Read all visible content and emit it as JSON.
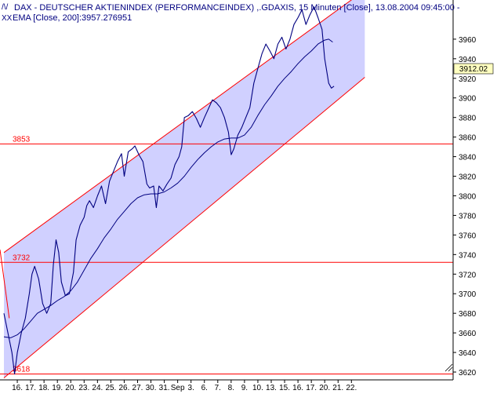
{
  "header": {
    "title_line": "DAX  - DEUTSCHER AKTIENINDEX (PERFORMANCEINDEX) ,.GDAXIS, 15 Minuten [Close], 13.08.2004 09:45:00 -",
    "indicator_line": "EMA [Close, 200]:3957.276951"
  },
  "last_price_label": "3912.02",
  "colors": {
    "price": "#000080",
    "ema": "#000080",
    "channel_fill": "#c8c8ff",
    "channel_line": "#ff0000",
    "level_line": "#ff0000",
    "level_text": "#ff0000",
    "last_label_bg": "#ffffc0"
  },
  "chart_data": {
    "type": "line",
    "title": "DAX  - DEUTSCHER AKTIENINDEX (PERFORMANCEINDEX) ,.GDAXIS, 15 Minuten [Close], 13.08.2004 09:45:00 -",
    "ylim": [
      3612,
      4000
    ],
    "y_ticks": [
      3620,
      3640,
      3660,
      3680,
      3700,
      3720,
      3740,
      3760,
      3780,
      3800,
      3820,
      3840,
      3860,
      3880,
      3900,
      3920,
      3940,
      3960
    ],
    "x_tick_labels": [
      "16.",
      "17.",
      "18.",
      "19.",
      "20.",
      "23.",
      "24.",
      "25.",
      "26.",
      "27.",
      "30.",
      "31.",
      "Sep",
      "3.",
      "6.",
      "7.",
      "8.",
      "9.",
      "10.",
      "13.",
      "15.",
      "16.",
      "17.",
      "20.",
      "21.",
      "22."
    ],
    "x_tick_index": [
      1,
      2,
      3,
      4,
      5,
      6,
      7,
      8,
      9,
      10,
      11,
      12,
      13,
      14,
      15,
      16,
      17,
      18,
      19,
      20,
      21,
      22,
      23,
      24,
      25,
      26
    ],
    "grid": false,
    "horizontal_levels": [
      {
        "label": "3853",
        "value": 3853
      },
      {
        "label": "3732",
        "value": 3732
      },
      {
        "label": "3618",
        "value": 3618
      }
    ],
    "channel": {
      "upper": [
        [
          0,
          3742
        ],
        [
          27,
          4010
        ]
      ],
      "lower": [
        [
          0,
          3614
        ],
        [
          27,
          3921
        ]
      ]
    },
    "series": [
      {
        "name": "DAX",
        "points": [
          [
            0,
            3680
          ],
          [
            0.3,
            3660
          ],
          [
            0.6,
            3640
          ],
          [
            0.8,
            3618
          ],
          [
            1.0,
            3640
          ],
          [
            1.3,
            3660
          ],
          [
            1.6,
            3675
          ],
          [
            1.9,
            3700
          ],
          [
            2.1,
            3720
          ],
          [
            2.3,
            3728
          ],
          [
            2.6,
            3715
          ],
          [
            2.9,
            3690
          ],
          [
            3.2,
            3680
          ],
          [
            3.5,
            3690
          ],
          [
            3.7,
            3730
          ],
          [
            3.9,
            3755
          ],
          [
            4.1,
            3742
          ],
          [
            4.3,
            3712
          ],
          [
            4.6,
            3698
          ],
          [
            4.9,
            3700
          ],
          [
            5.2,
            3722
          ],
          [
            5.4,
            3755
          ],
          [
            5.7,
            3770
          ],
          [
            6.0,
            3778
          ],
          [
            6.2,
            3790
          ],
          [
            6.4,
            3795
          ],
          [
            6.7,
            3788
          ],
          [
            7.0,
            3800
          ],
          [
            7.3,
            3810
          ],
          [
            7.6,
            3792
          ],
          [
            7.9,
            3815
          ],
          [
            8.2,
            3825
          ],
          [
            8.5,
            3835
          ],
          [
            8.8,
            3843
          ],
          [
            9.0,
            3820
          ],
          [
            9.3,
            3845
          ],
          [
            9.6,
            3848
          ],
          [
            9.8,
            3851
          ],
          [
            10.1,
            3842
          ],
          [
            10.4,
            3835
          ],
          [
            10.7,
            3812
          ],
          [
            10.9,
            3808
          ],
          [
            11.2,
            3810
          ],
          [
            11.4,
            3788
          ],
          [
            11.6,
            3810
          ],
          [
            11.9,
            3805
          ],
          [
            12.2,
            3812
          ],
          [
            12.5,
            3818
          ],
          [
            12.8,
            3832
          ],
          [
            13.1,
            3840
          ],
          [
            13.3,
            3850
          ],
          [
            13.5,
            3880
          ],
          [
            13.8,
            3882
          ],
          [
            14.1,
            3886
          ],
          [
            14.4,
            3879
          ],
          [
            14.7,
            3870
          ],
          [
            15.0,
            3880
          ],
          [
            15.3,
            3889
          ],
          [
            15.6,
            3898
          ],
          [
            15.9,
            3895
          ],
          [
            16.2,
            3890
          ],
          [
            16.5,
            3880
          ],
          [
            16.8,
            3865
          ],
          [
            17.0,
            3842
          ],
          [
            17.2,
            3848
          ],
          [
            17.5,
            3862
          ],
          [
            17.8,
            3870
          ],
          [
            18.1,
            3880
          ],
          [
            18.4,
            3890
          ],
          [
            18.7,
            3915
          ],
          [
            19.0,
            3930
          ],
          [
            19.3,
            3945
          ],
          [
            19.6,
            3955
          ],
          [
            19.9,
            3948
          ],
          [
            20.2,
            3940
          ],
          [
            20.5,
            3955
          ],
          [
            20.8,
            3962
          ],
          [
            21.1,
            3950
          ],
          [
            21.4,
            3960
          ],
          [
            21.7,
            3975
          ],
          [
            22.0,
            3982
          ],
          [
            22.3,
            3990
          ],
          [
            22.6,
            3975
          ],
          [
            22.9,
            3985
          ],
          [
            23.2,
            3993
          ],
          [
            23.5,
            3982
          ],
          [
            23.8,
            3970
          ],
          [
            24.0,
            3940
          ],
          [
            24.3,
            3915
          ],
          [
            24.5,
            3910
          ],
          [
            24.7,
            3912
          ]
        ]
      },
      {
        "name": "EMA [Close, 200]",
        "points": [
          [
            0,
            3656
          ],
          [
            0.5,
            3655
          ],
          [
            1.0,
            3658
          ],
          [
            1.5,
            3664
          ],
          [
            2.0,
            3672
          ],
          [
            2.5,
            3680
          ],
          [
            3.0,
            3684
          ],
          [
            3.5,
            3688
          ],
          [
            4.0,
            3693
          ],
          [
            4.5,
            3697
          ],
          [
            5.0,
            3703
          ],
          [
            5.5,
            3712
          ],
          [
            6.0,
            3724
          ],
          [
            6.5,
            3736
          ],
          [
            7.0,
            3746
          ],
          [
            7.5,
            3757
          ],
          [
            8.0,
            3766
          ],
          [
            8.5,
            3776
          ],
          [
            9.0,
            3784
          ],
          [
            9.5,
            3792
          ],
          [
            10.0,
            3798
          ],
          [
            10.5,
            3801
          ],
          [
            11.0,
            3802
          ],
          [
            11.5,
            3802
          ],
          [
            12.0,
            3804
          ],
          [
            12.5,
            3808
          ],
          [
            13.0,
            3813
          ],
          [
            13.5,
            3820
          ],
          [
            14.0,
            3829
          ],
          [
            14.5,
            3837
          ],
          [
            15.0,
            3844
          ],
          [
            15.5,
            3850
          ],
          [
            16.0,
            3855
          ],
          [
            16.5,
            3858
          ],
          [
            17.0,
            3859
          ],
          [
            17.5,
            3859
          ],
          [
            18.0,
            3862
          ],
          [
            18.5,
            3870
          ],
          [
            19.0,
            3882
          ],
          [
            19.5,
            3893
          ],
          [
            20.0,
            3902
          ],
          [
            20.5,
            3912
          ],
          [
            21.0,
            3920
          ],
          [
            21.5,
            3927
          ],
          [
            22.0,
            3935
          ],
          [
            22.5,
            3942
          ],
          [
            23.0,
            3948
          ],
          [
            23.5,
            3955
          ],
          [
            24.0,
            3959
          ],
          [
            24.3,
            3960
          ],
          [
            24.6,
            3957
          ]
        ]
      }
    ]
  }
}
